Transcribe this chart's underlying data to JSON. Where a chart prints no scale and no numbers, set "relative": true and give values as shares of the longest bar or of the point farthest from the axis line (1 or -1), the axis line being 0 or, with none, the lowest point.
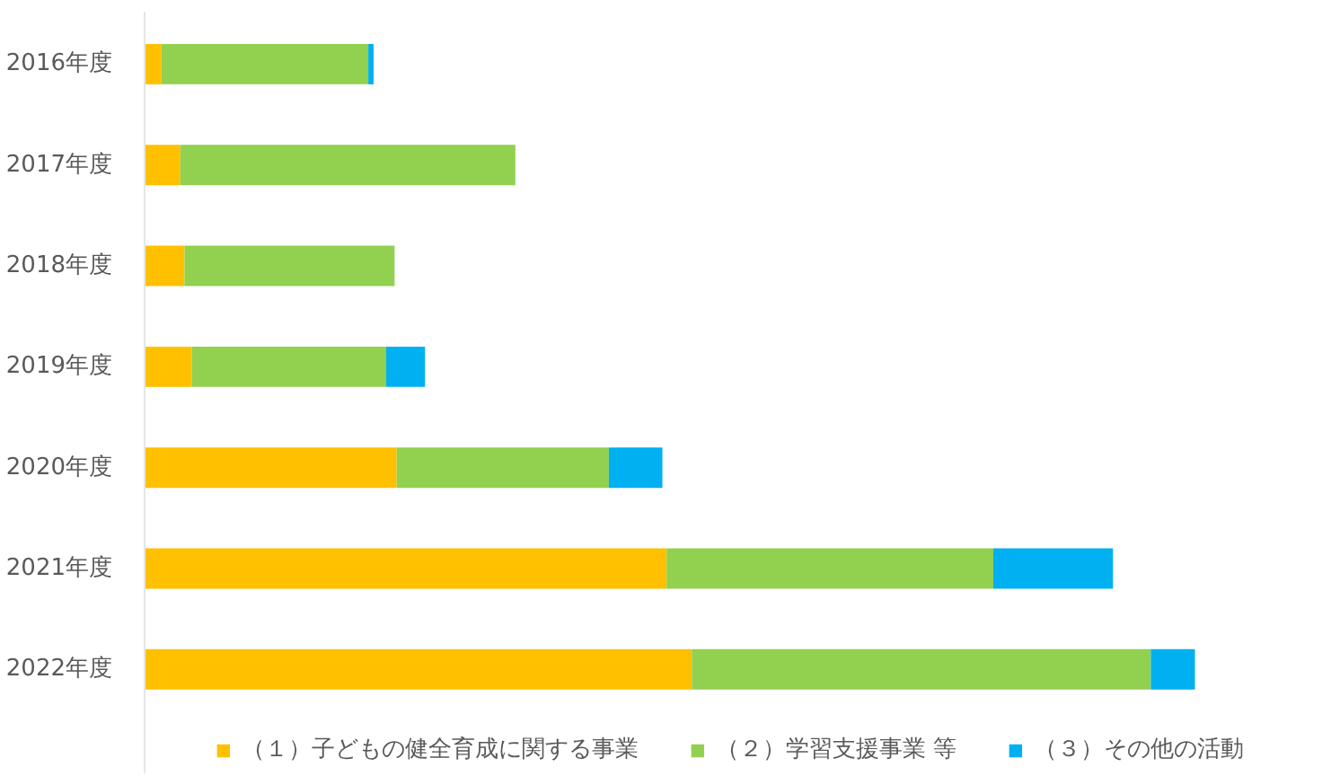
{
  "chart_data": {
    "type": "bar",
    "orientation": "horizontal",
    "stacked": true,
    "relative": true,
    "legend": "bottom",
    "categories": [
      "2016年度",
      "2017年度",
      "2018年度",
      "2019年度",
      "2020年度",
      "2021年度",
      "2022年度"
    ],
    "series": [
      {
        "name": "（１）子どもの健全育成に関する事業",
        "color": "#ffc000",
        "values": [
          0.016,
          0.034,
          0.038,
          0.045,
          0.24,
          0.497,
          0.521
        ]
      },
      {
        "name": "（２）学習支援事業 等",
        "color": "#92d050",
        "values": [
          0.197,
          0.319,
          0.2,
          0.185,
          0.202,
          0.311,
          0.437
        ]
      },
      {
        "name": "（３）その他の活動",
        "color": "#00b0f0",
        "values": [
          0.005,
          0,
          0,
          0.037,
          0.051,
          0.114,
          0.042
        ]
      }
    ]
  }
}
